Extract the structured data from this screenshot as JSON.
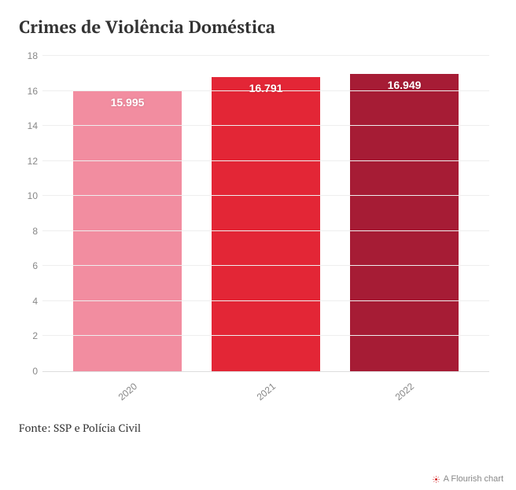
{
  "chart": {
    "type": "bar",
    "title": "Crimes de Violência Doméstica",
    "title_fontsize": 22,
    "title_color": "#333333",
    "background_color": "#ffffff",
    "grid_color": "#eeeeee",
    "axis_color": "#dddddd",
    "tick_label_color": "#888888",
    "tick_fontsize": 12,
    "bar_label_fontsize": 14,
    "bar_label_color": "#ffffff",
    "ylim": [
      0,
      18
    ],
    "ytick_step": 2,
    "yticks": [
      "0",
      "2",
      "4",
      "6",
      "8",
      "10",
      "12",
      "14",
      "16",
      "18"
    ],
    "categories": [
      "2020",
      "2021",
      "2022"
    ],
    "values": [
      15.995,
      16.791,
      16.949
    ],
    "display_values": [
      "15.995",
      "16.791",
      "16.949"
    ],
    "bar_colors": [
      "#f28da0",
      "#e32636",
      "#a61c35"
    ],
    "bar_width": 0.78,
    "x_label_rotation_deg": -40
  },
  "source": {
    "text": "Fonte: SSP e Polícia Civil",
    "fontsize": 14,
    "color": "#333333"
  },
  "credit": {
    "text": "A Flourish chart",
    "icon_color": "#cc0000",
    "fontsize": 11,
    "color": "#888888"
  }
}
